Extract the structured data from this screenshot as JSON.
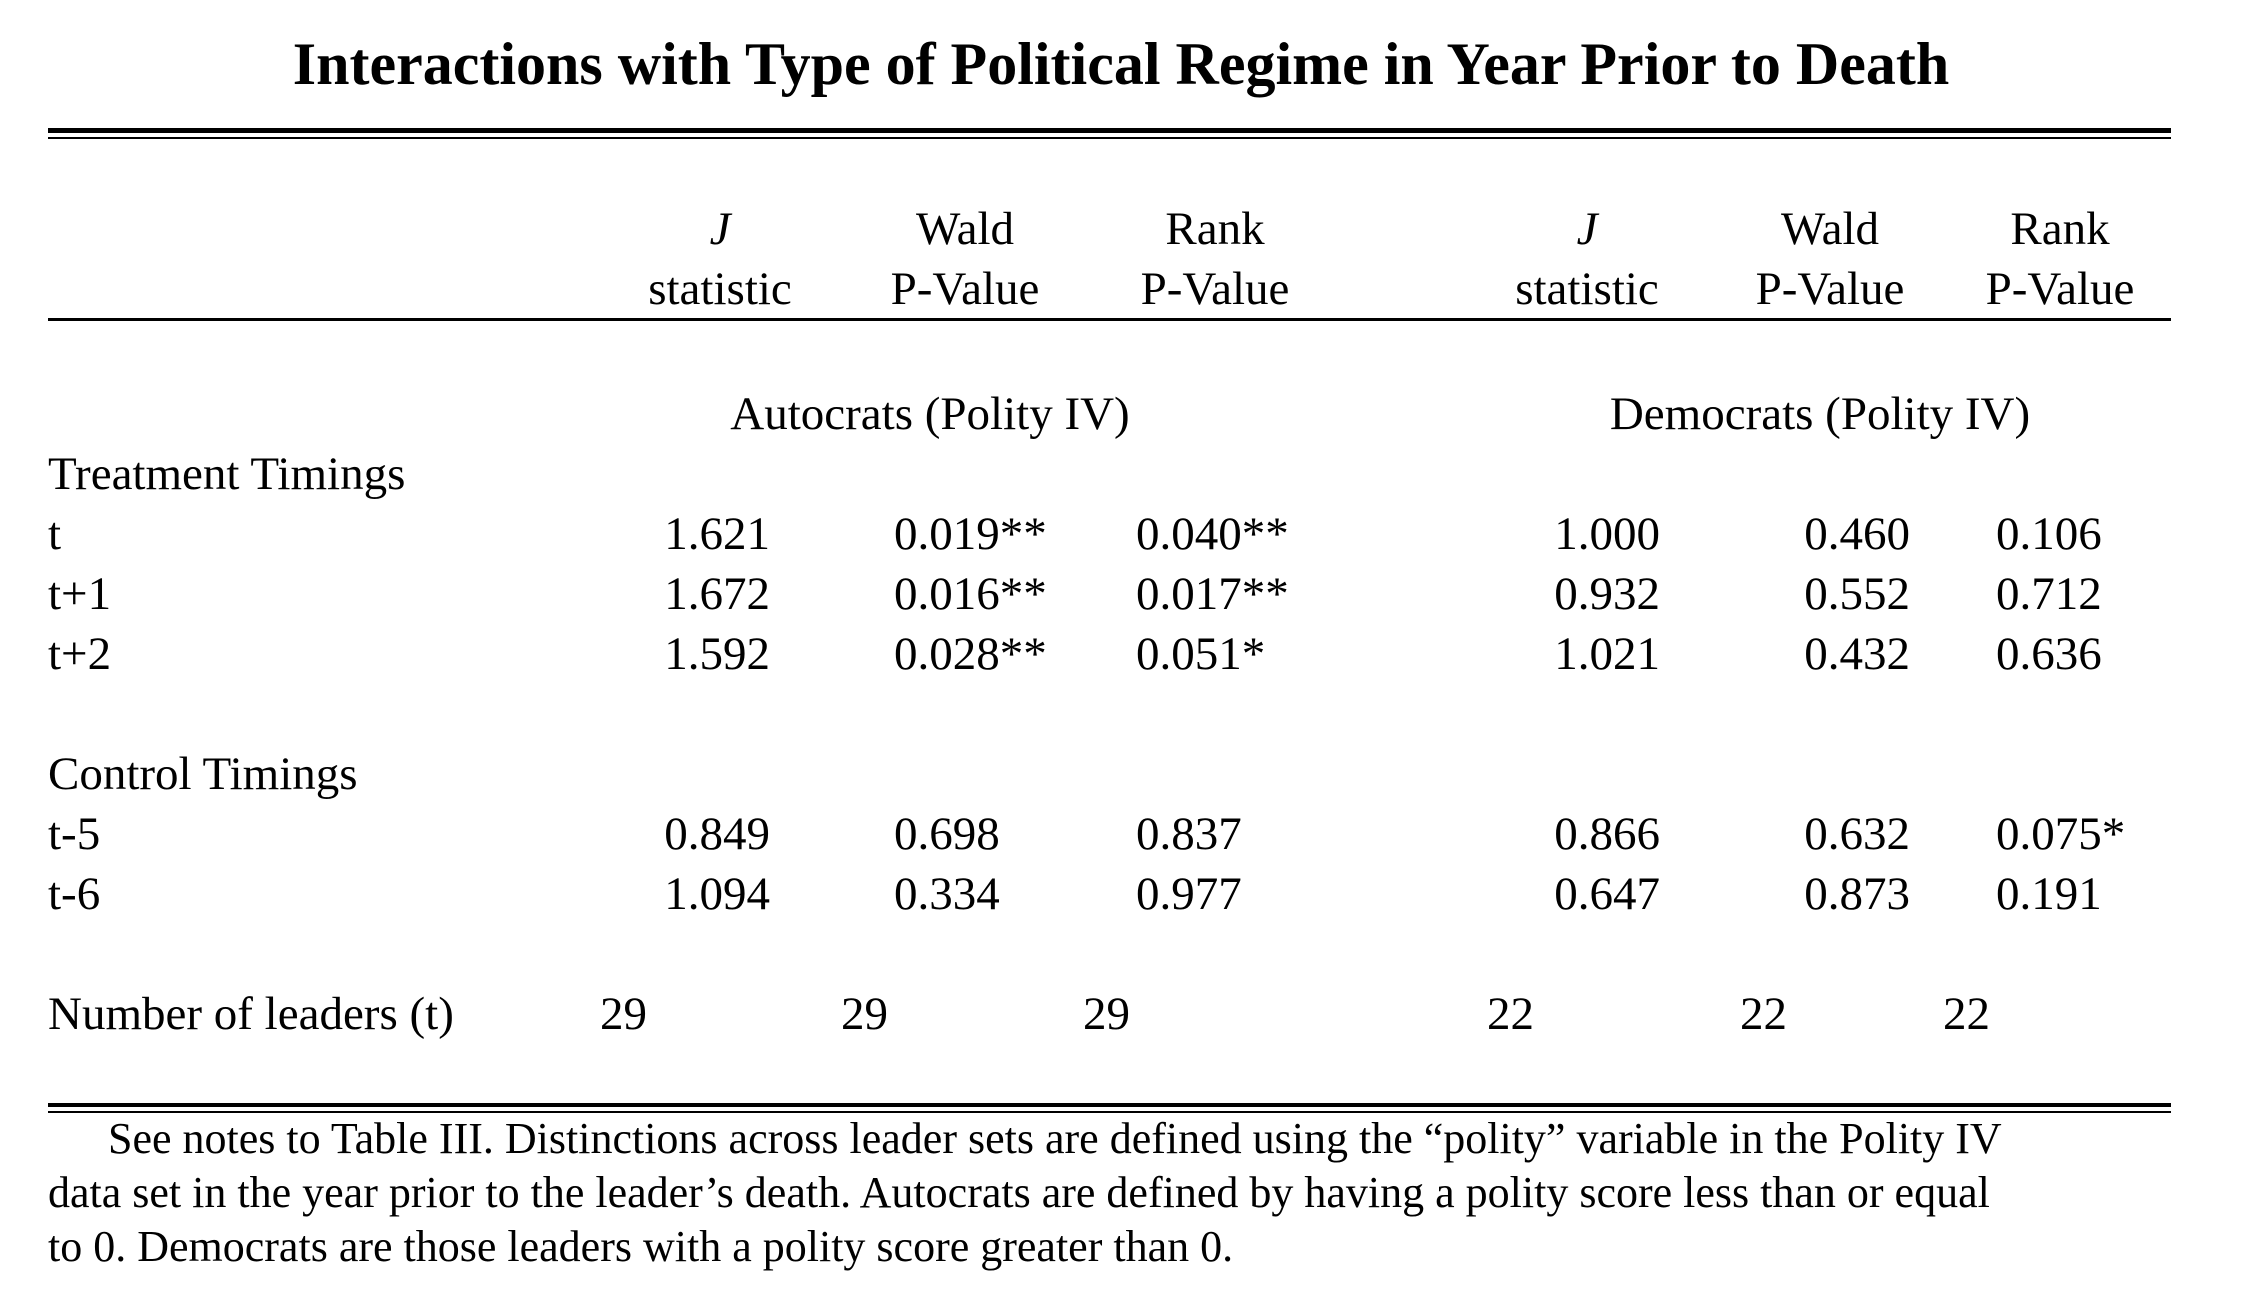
{
  "title": "Interactions with Type of Political Regime in Year Prior to Death",
  "columns": [
    {
      "top": "J",
      "bottom": "statistic"
    },
    {
      "top": "Wald",
      "bottom": "P-Value"
    },
    {
      "top": "Rank",
      "bottom": "P-Value"
    },
    {
      "top": "J",
      "bottom": "statistic"
    },
    {
      "top": "Wald",
      "bottom": "P-Value"
    },
    {
      "top": "Rank",
      "bottom": "P-Value"
    }
  ],
  "groups": {
    "autocrats": "Autocrats (Polity IV)",
    "democrats": "Democrats (Polity IV)"
  },
  "sections": [
    {
      "heading": "Treatment Timings",
      "rows": [
        {
          "label": "t",
          "values": [
            "1.621",
            "0.019**",
            "0.040**",
            "1.000",
            "0.460",
            "0.106"
          ]
        },
        {
          "label": "t+1",
          "values": [
            "1.672",
            "0.016**",
            "0.017**",
            "0.932",
            "0.552",
            "0.712"
          ]
        },
        {
          "label": "t+2",
          "values": [
            "1.592",
            "0.028**",
            "0.051*",
            "1.021",
            "0.432",
            "0.636"
          ]
        }
      ]
    },
    {
      "heading": "Control Timings",
      "rows": [
        {
          "label": "t-5",
          "values": [
            "0.849",
            "0.698",
            "0.837",
            "0.866",
            "0.632",
            "0.075*"
          ]
        },
        {
          "label": "t-6",
          "values": [
            "1.094",
            "0.334",
            "0.977",
            "0.647",
            "0.873",
            "0.191"
          ]
        }
      ]
    }
  ],
  "leaders": {
    "label": "Number of leaders (t)",
    "values": [
      "29",
      "29",
      "29",
      "22",
      "22",
      "22"
    ]
  },
  "notes": [
    "See notes to Table III. Distinctions across leader sets are defined using the “polity” variable in the Polity IV",
    "data set in the year prior to the leader’s death.  Autocrats are defined by having a polity score less than or equal",
    "to 0.  Democrats are those leaders with a polity score greater than 0."
  ]
}
